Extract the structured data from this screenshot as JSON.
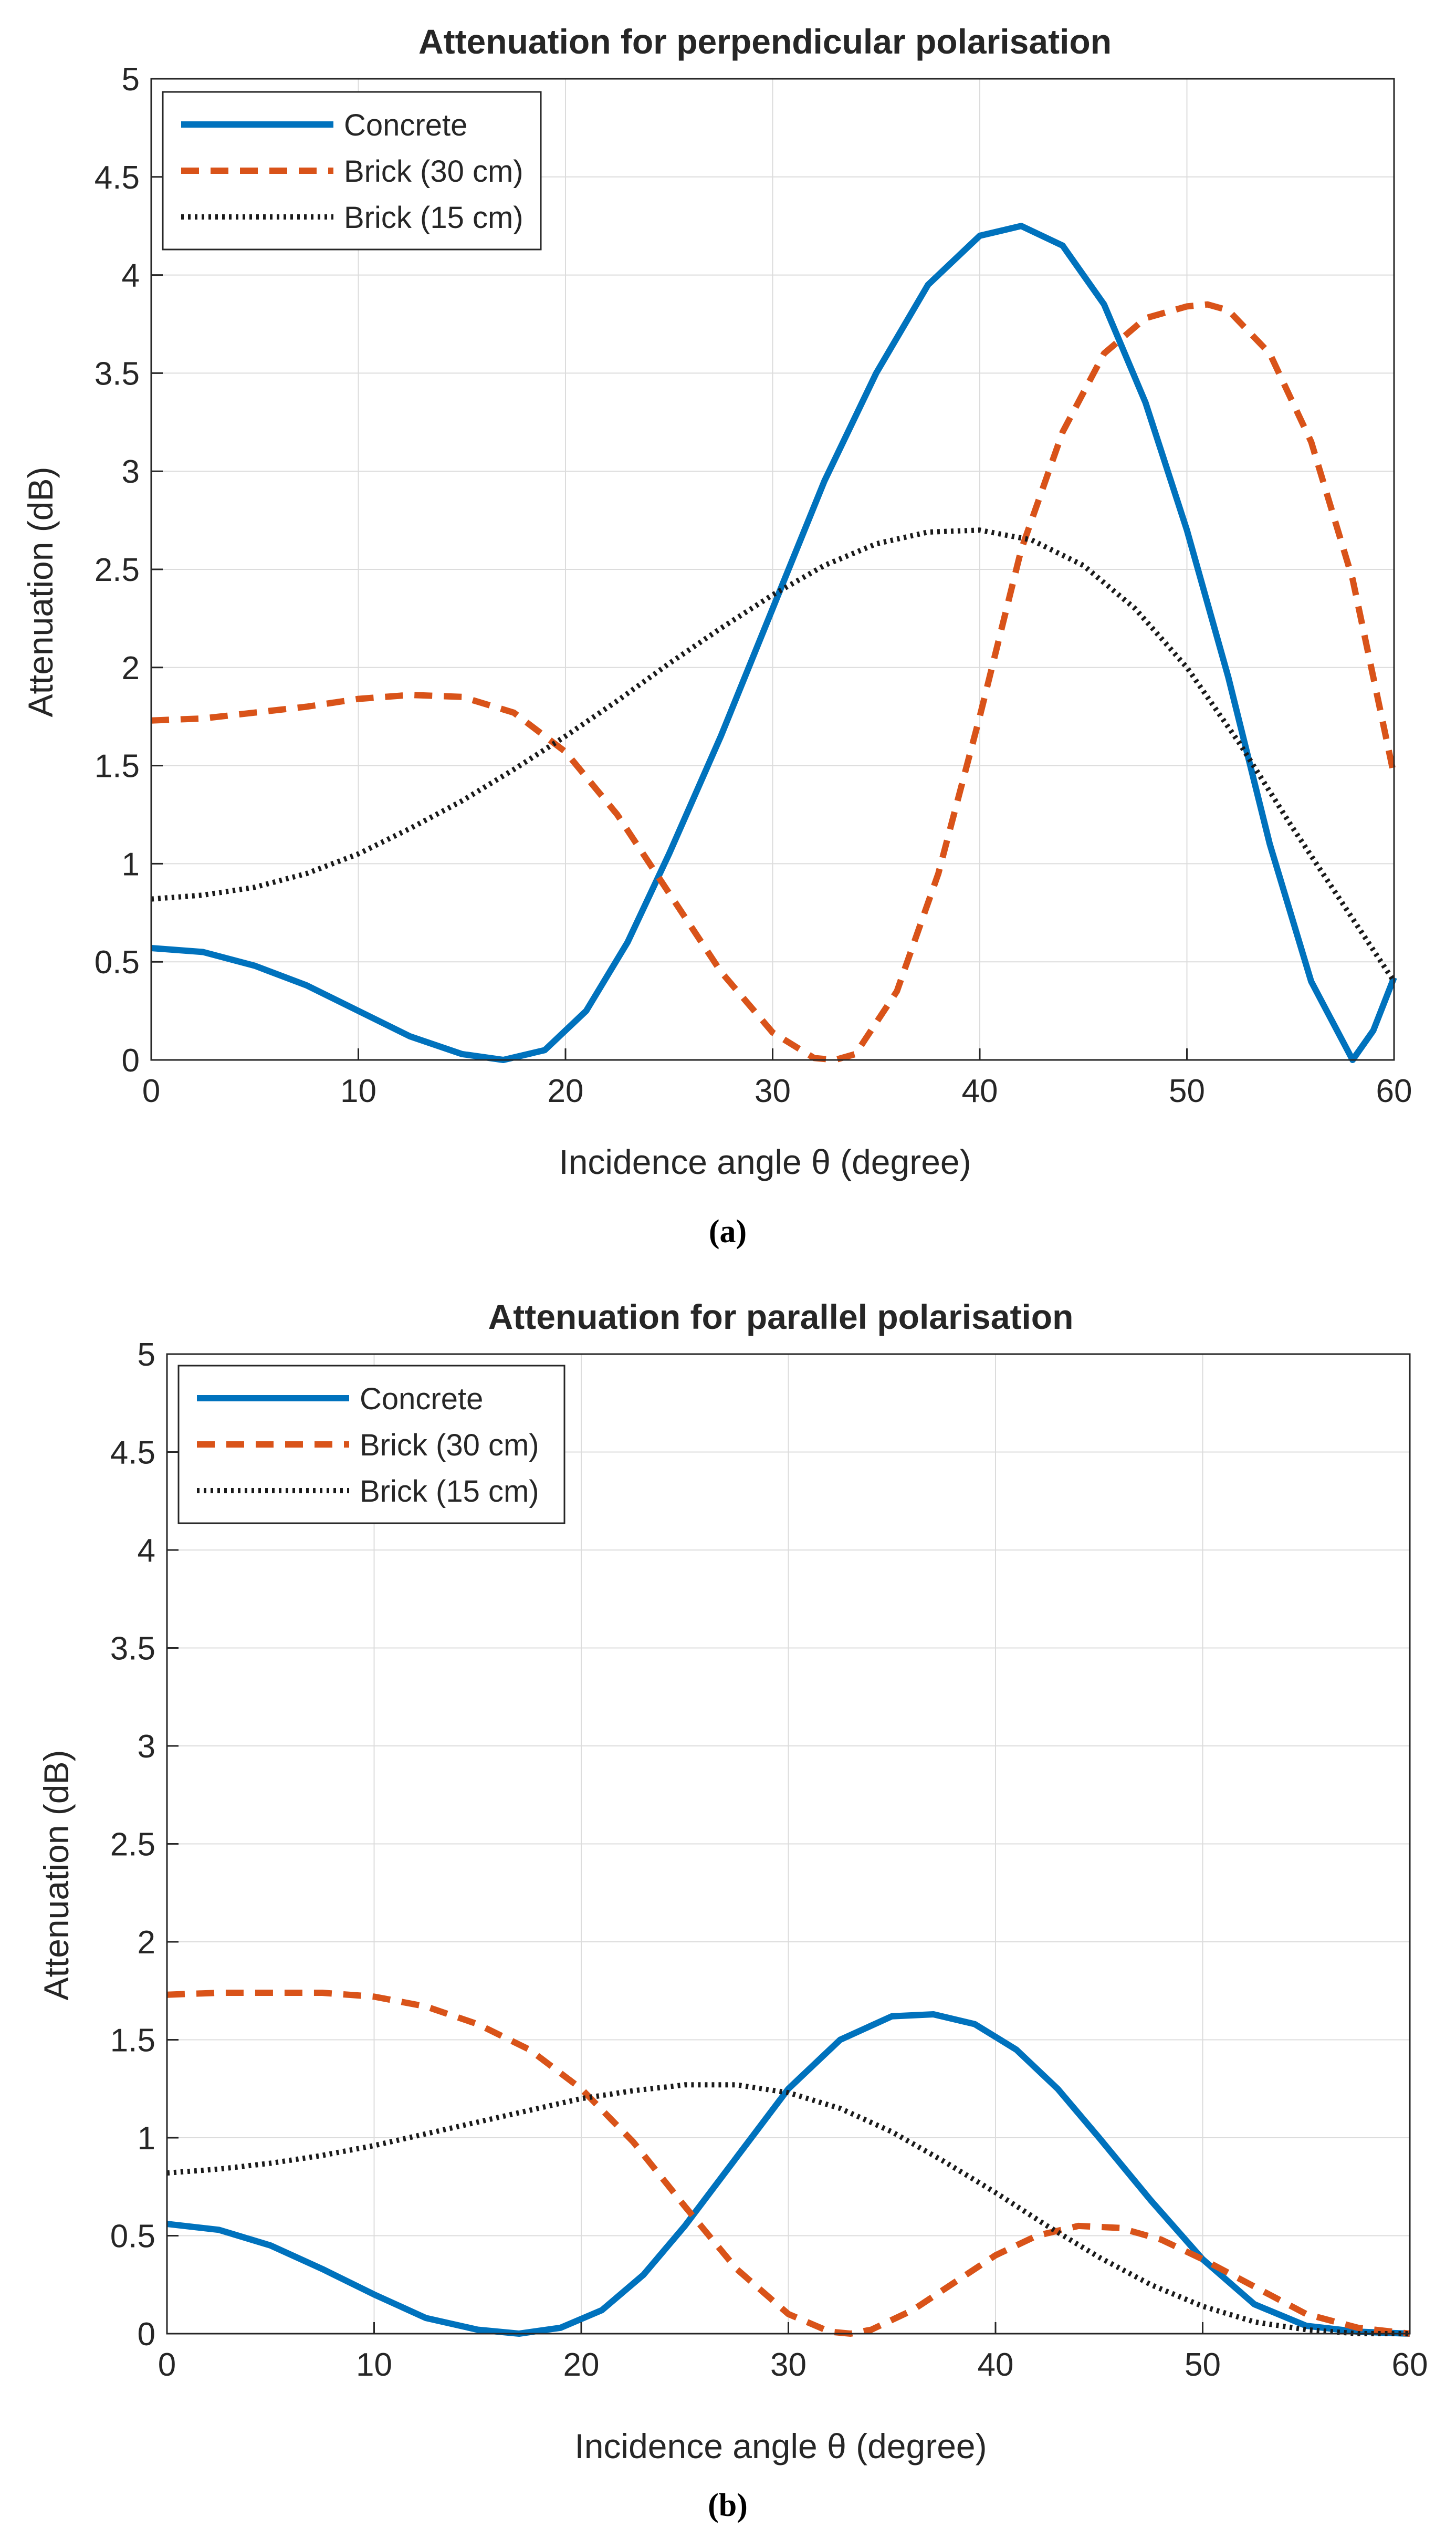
{
  "colors": {
    "concrete": "#0072BD",
    "brick30": "#D95319",
    "brick15": "#1a1a1a",
    "grid": "#dcdcdc",
    "axis": "#262626"
  },
  "chart_data": [
    {
      "type": "line",
      "panel_label": "(a)",
      "title": "Attenuation for perpendicular polarisation",
      "xlabel": "Incidence angle θ (degree)",
      "ylabel": "Attenuation (dB)",
      "xlim": [
        0,
        60
      ],
      "ylim": [
        0,
        5
      ],
      "xticks": [
        0,
        10,
        20,
        30,
        40,
        50,
        60
      ],
      "yticks": [
        0,
        0.5,
        1,
        1.5,
        2,
        2.5,
        3,
        3.5,
        4,
        4.5,
        5
      ],
      "grid": true,
      "legend_position": "top-left",
      "series": [
        {
          "name": "Concrete",
          "style": "solid",
          "x": [
            0,
            2.5,
            5,
            7.5,
            10,
            12.5,
            15,
            17,
            19,
            21,
            23,
            25,
            27.5,
            30,
            32.5,
            35,
            37.5,
            40,
            42,
            44,
            46,
            48,
            50,
            52,
            54,
            56,
            58,
            59,
            60
          ],
          "y": [
            0.57,
            0.55,
            0.48,
            0.38,
            0.25,
            0.12,
            0.03,
            0.0,
            0.05,
            0.25,
            0.6,
            1.05,
            1.65,
            2.3,
            2.95,
            3.5,
            3.95,
            4.2,
            4.25,
            4.15,
            3.85,
            3.35,
            2.7,
            1.95,
            1.1,
            0.4,
            0.0,
            0.15,
            0.42
          ]
        },
        {
          "name": "Brick (30 cm)",
          "style": "dashed",
          "x": [
            0,
            2.5,
            5,
            7.5,
            10,
            12.5,
            15,
            17.5,
            20,
            22.5,
            25,
            27.5,
            30,
            32,
            33,
            34,
            36,
            38,
            40,
            42,
            44,
            46,
            48,
            50,
            51,
            52,
            54,
            56,
            58,
            60
          ],
          "y": [
            1.73,
            1.74,
            1.77,
            1.8,
            1.84,
            1.86,
            1.85,
            1.77,
            1.57,
            1.25,
            0.85,
            0.45,
            0.14,
            0.01,
            0.0,
            0.03,
            0.35,
            0.95,
            1.75,
            2.6,
            3.2,
            3.6,
            3.78,
            3.84,
            3.85,
            3.82,
            3.6,
            3.15,
            2.45,
            1.45
          ]
        },
        {
          "name": "Brick (15 cm)",
          "style": "dotted",
          "x": [
            0,
            2.5,
            5,
            7.5,
            10,
            12.5,
            15,
            17.5,
            20,
            22.5,
            25,
            27.5,
            30,
            32.5,
            35,
            37.5,
            40,
            42.5,
            45,
            47.5,
            50,
            52.5,
            55,
            57.5,
            60
          ],
          "y": [
            0.82,
            0.84,
            0.88,
            0.95,
            1.05,
            1.18,
            1.32,
            1.48,
            1.65,
            1.83,
            2.02,
            2.2,
            2.37,
            2.52,
            2.63,
            2.69,
            2.7,
            2.65,
            2.52,
            2.3,
            2.0,
            1.62,
            1.2,
            0.8,
            0.4
          ]
        }
      ]
    },
    {
      "type": "line",
      "panel_label": "(b)",
      "title": "Attenuation for parallel polarisation",
      "xlabel": "Incidence angle θ (degree)",
      "ylabel": "Attenuation (dB)",
      "xlim": [
        0,
        60
      ],
      "ylim": [
        0,
        5
      ],
      "xticks": [
        0,
        10,
        20,
        30,
        40,
        50,
        60
      ],
      "yticks": [
        0,
        0.5,
        1,
        1.5,
        2,
        2.5,
        3,
        3.5,
        4,
        4.5,
        5
      ],
      "grid": true,
      "legend_position": "top-left",
      "series": [
        {
          "name": "Concrete",
          "style": "solid",
          "x": [
            0,
            2.5,
            5,
            7.5,
            10,
            12.5,
            15,
            17,
            19,
            21,
            23,
            25,
            27.5,
            30,
            32.5,
            35,
            37,
            39,
            41,
            43,
            45,
            47.5,
            50,
            52.5,
            55,
            57.5,
            60
          ],
          "y": [
            0.56,
            0.53,
            0.45,
            0.33,
            0.2,
            0.08,
            0.02,
            0.0,
            0.03,
            0.12,
            0.3,
            0.55,
            0.9,
            1.25,
            1.5,
            1.62,
            1.63,
            1.58,
            1.45,
            1.25,
            1.0,
            0.68,
            0.38,
            0.15,
            0.04,
            0.01,
            0.0
          ]
        },
        {
          "name": "Brick (30 cm)",
          "style": "dashed",
          "x": [
            0,
            2.5,
            5,
            7.5,
            10,
            12.5,
            15,
            17.5,
            20,
            22.5,
            25,
            27.5,
            30,
            32,
            33,
            34,
            36,
            38,
            40,
            42,
            44,
            46,
            48,
            50,
            52.5,
            55,
            57.5,
            60
          ],
          "y": [
            1.73,
            1.74,
            1.74,
            1.74,
            1.72,
            1.67,
            1.58,
            1.45,
            1.25,
            0.98,
            0.65,
            0.33,
            0.1,
            0.01,
            0.0,
            0.02,
            0.12,
            0.26,
            0.4,
            0.5,
            0.55,
            0.54,
            0.48,
            0.38,
            0.24,
            0.1,
            0.03,
            0.0
          ]
        },
        {
          "name": "Brick (15 cm)",
          "style": "dotted",
          "x": [
            0,
            2.5,
            5,
            7.5,
            10,
            12.5,
            15,
            17.5,
            20,
            22.5,
            25,
            27.5,
            30,
            32.5,
            35,
            37.5,
            40,
            42.5,
            45,
            47.5,
            50,
            52.5,
            55,
            57.5,
            60
          ],
          "y": [
            0.82,
            0.84,
            0.87,
            0.91,
            0.96,
            1.02,
            1.08,
            1.14,
            1.2,
            1.24,
            1.27,
            1.27,
            1.23,
            1.15,
            1.03,
            0.88,
            0.72,
            0.55,
            0.39,
            0.25,
            0.14,
            0.06,
            0.02,
            0.0,
            0.0
          ]
        }
      ]
    }
  ]
}
